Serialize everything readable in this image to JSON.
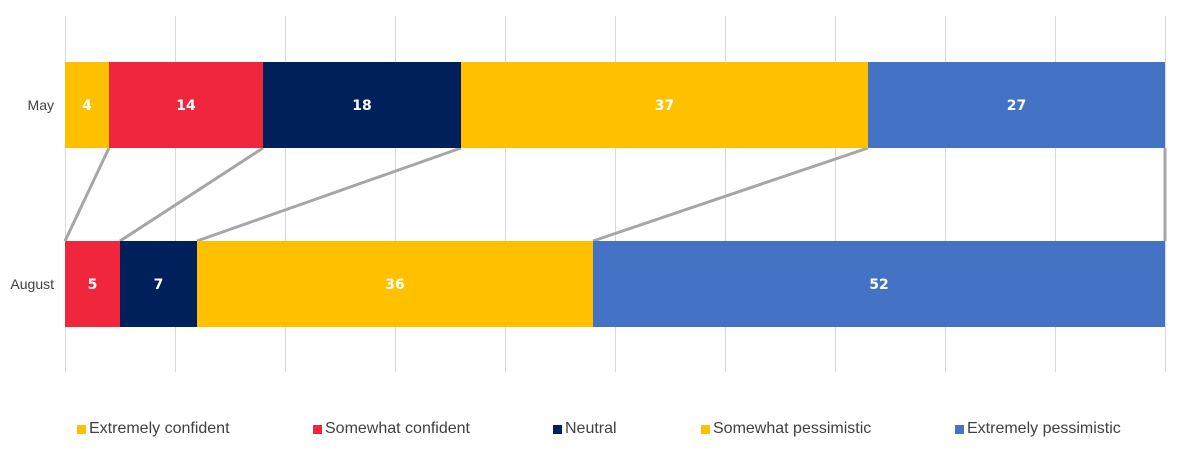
{
  "chart_data": {
    "type": "bar",
    "orientation": "horizontal",
    "stacked": true,
    "percent_stacked": true,
    "categories": [
      "May",
      "August"
    ],
    "series": [
      {
        "name": "Extremely confident",
        "color": "#FFC000",
        "values": [
          4,
          0
        ]
      },
      {
        "name": "Somewhat confident",
        "color": "#F0263C",
        "values": [
          14,
          5
        ]
      },
      {
        "name": "Neutral",
        "color": "#00205B",
        "values": [
          18,
          7
        ]
      },
      {
        "name": "Somewhat pessimistic",
        "color": "#FFC000",
        "values": [
          37,
          36
        ]
      },
      {
        "name": "Extremely pessimistic",
        "color": "#4472C4",
        "values": [
          27,
          52
        ]
      }
    ],
    "xlim": [
      0,
      100
    ],
    "grid": true,
    "series_lines": true,
    "legend_position": "bottom",
    "title": "",
    "xlabel": "",
    "ylabel": ""
  }
}
